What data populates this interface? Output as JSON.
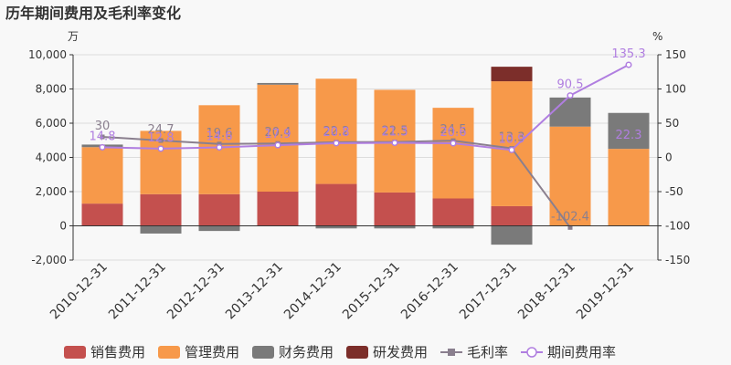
{
  "chart_data": {
    "type": "bar",
    "title": "历年期间费用及毛利率变化",
    "y_left_unit": "万",
    "y_right_unit": "%",
    "ylim_left": [
      -2000,
      10000
    ],
    "ylim_right": [
      -150,
      150
    ],
    "yticks_left": [
      "10,000",
      "8,000",
      "6,000",
      "4,000",
      "2,000",
      "0",
      "-2,000"
    ],
    "yticks_right": [
      "150",
      "100",
      "50",
      "0",
      "-50",
      "-100",
      "-150"
    ],
    "categories": [
      "2010-12-31",
      "2011-12-31",
      "2012-12-31",
      "2013-12-31",
      "2014-12-31",
      "2015-12-31",
      "2016-12-31",
      "2017-12-31",
      "2018-12-31",
      "2019-12-31"
    ],
    "bar_series": [
      {
        "name": "销售费用",
        "color": "#c4504e",
        "values": [
          1300,
          1850,
          1850,
          2000,
          2450,
          1950,
          1600,
          1150,
          0,
          0
        ]
      },
      {
        "name": "管理费用",
        "color": "#f7994a",
        "values": [
          3300,
          3700,
          5200,
          6250,
          6150,
          6000,
          5300,
          7300,
          5800,
          4500
        ]
      },
      {
        "name": "财务费用",
        "color": "#7a7a7a",
        "values": [
          150,
          -450,
          -300,
          100,
          -150,
          -150,
          -150,
          -1100,
          1700,
          2100
        ]
      },
      {
        "name": "研发费用",
        "color": "#7c2e2a",
        "values": [
          0,
          0,
          0,
          0,
          0,
          0,
          0,
          850,
          0,
          0
        ]
      }
    ],
    "line_series": [
      {
        "name": "毛利率",
        "color": "#8a7f8e",
        "marker": "square",
        "values": [
          30,
          24.7,
          19.6,
          20.4,
          22.2,
          22.5,
          24.5,
          13.3,
          -102.4,
          null
        ],
        "labels": [
          "30",
          "24.7",
          "19.6",
          "20.4",
          "22.2",
          "22.5",
          "24.5",
          "13.3",
          "-102.4",
          ""
        ]
      },
      {
        "name": "期间费用率",
        "color": "#b07ee0",
        "marker": "circle",
        "values": [
          14.8,
          12.8,
          14.6,
          17.9,
          20.8,
          21.3,
          20.6,
          10.9,
          90.5,
          135.3
        ],
        "labels": [
          "14.8",
          "12.8",
          "14.6",
          "17.9",
          "20.8",
          "21.3",
          "20.6",
          "10.9",
          "90.5",
          "135.3"
        ]
      }
    ],
    "extra_labels": [
      {
        "category_index": 9,
        "text": "22.3",
        "value": 22.3
      }
    ],
    "grid": true,
    "legend_position": "bottom"
  }
}
